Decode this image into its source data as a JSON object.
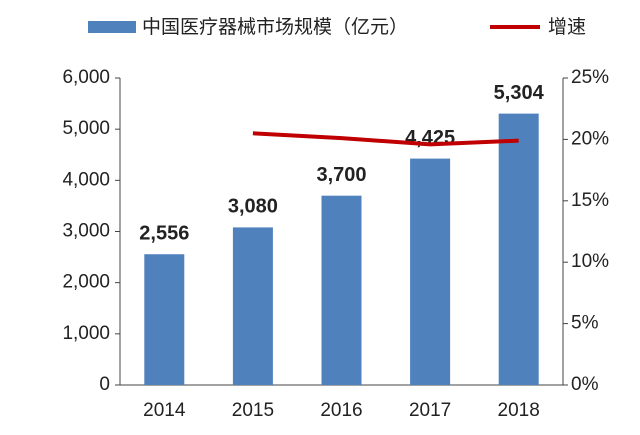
{
  "chart_data": {
    "type": "bar",
    "categories": [
      "2014",
      "2015",
      "2016",
      "2017",
      "2018"
    ],
    "series": [
      {
        "name": "中国医疗器械市场规模（亿元）",
        "type": "bar",
        "color": "#4f81bd",
        "values": [
          2556,
          3080,
          3700,
          4425,
          5304
        ],
        "value_labels": [
          "2,556",
          "3,080",
          "3,700",
          "4,425",
          "5,304"
        ]
      },
      {
        "name": "增速",
        "type": "line",
        "axis": "y2",
        "color": "#c00000",
        "values": [
          null,
          20.5,
          20.1,
          19.6,
          19.9
        ]
      }
    ],
    "ylim": [
      0,
      6000
    ],
    "yticks": [
      0,
      {
        "value": 1000,
        "label": "1,000"
      },
      {
        "value": 2000,
        "label": "2,000"
      },
      {
        "value": 3000,
        "label": "3,000"
      },
      {
        "value": 4000,
        "label": "4,000"
      },
      {
        "value": 5000,
        "label": "5,000"
      },
      {
        "value": 6000,
        "label": "6,000"
      }
    ],
    "y2lim": [
      0,
      25
    ],
    "y2ticks": [
      {
        "value": 0,
        "label": "0%"
      },
      {
        "value": 5,
        "label": "5%"
      },
      {
        "value": 10,
        "label": "10%"
      },
      {
        "value": 15,
        "label": "15%"
      },
      {
        "value": 20,
        "label": "20%"
      },
      {
        "value": 25,
        "label": "25%"
      }
    ],
    "grid": false,
    "legend": "top"
  }
}
